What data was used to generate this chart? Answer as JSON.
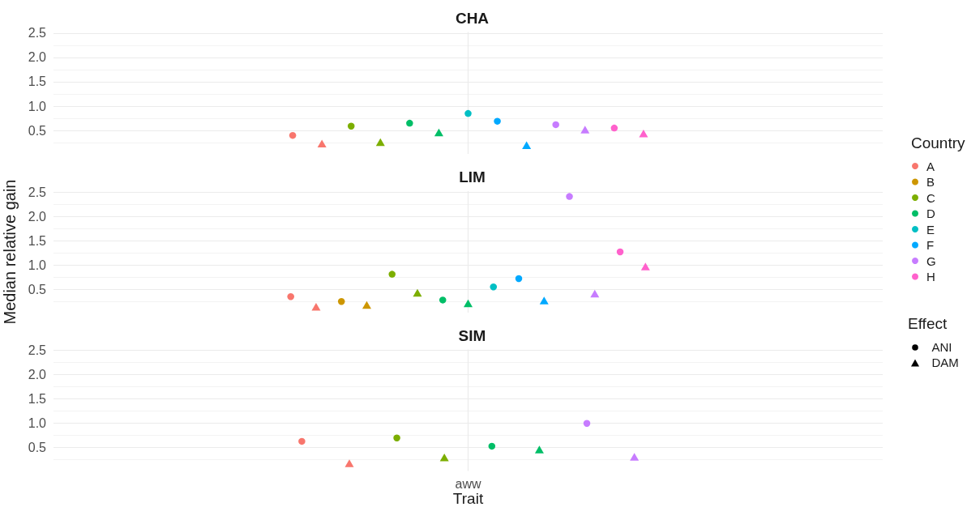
{
  "chart_data": [
    {
      "type": "scatter",
      "title": "CHA",
      "categories": [
        null
      ],
      "ylim": [
        0.02,
        2.52
      ],
      "yticks": [
        {
          "value": 0.25,
          "label": null
        },
        0.5,
        {
          "value": 0.75,
          "label": null
        },
        {
          "value": 1,
          "label": "1.0"
        },
        {
          "value": 1.25,
          "label": null
        },
        1.5,
        {
          "value": 1.75,
          "label": null
        },
        {
          "value": 2,
          "label": "2.0"
        },
        {
          "value": 2.25,
          "label": null
        },
        2.5
      ],
      "grid": true,
      "tick_labels": "y",
      "series": [
        {
          "color": "#f8766d",
          "marker": "circle",
          "values": [
            0.4
          ]
        },
        {
          "color": "#f8766d",
          "marker": "triangle",
          "values": [
            0.23
          ]
        },
        {
          "color": "#7cae00",
          "marker": "circle",
          "values": [
            0.59
          ]
        },
        {
          "color": "#7cae00",
          "marker": "triangle",
          "values": [
            0.26
          ]
        },
        {
          "color": "#00be67",
          "marker": "circle",
          "values": [
            0.65
          ]
        },
        {
          "color": "#00be67",
          "marker": "triangle",
          "values": [
            0.46
          ]
        },
        {
          "color": "#00bfc4",
          "marker": "circle",
          "values": [
            0.85
          ]
        },
        {
          "color": "#00a9ff",
          "marker": "circle",
          "values": [
            0.69
          ]
        },
        {
          "color": "#00a9ff",
          "marker": "triangle",
          "values": [
            0.2
          ]
        },
        {
          "color": "#c77cff",
          "marker": "circle",
          "values": [
            0.62
          ]
        },
        {
          "color": "#c77cff",
          "marker": "triangle",
          "values": [
            0.52
          ]
        },
        {
          "color": "#ff61cc",
          "marker": "circle",
          "values": [
            0.55
          ]
        },
        {
          "color": "#ff61cc",
          "marker": "triangle",
          "values": [
            0.44
          ]
        }
      ]
    },
    {
      "type": "scatter",
      "title": "LIM",
      "categories": [
        null
      ],
      "ylabel": "Median relative gain",
      "ylim": [
        0.02,
        2.52
      ],
      "yticks": [
        {
          "value": 0.25,
          "label": null
        },
        0.5,
        {
          "value": 0.75,
          "label": null
        },
        {
          "value": 1,
          "label": "1.0"
        },
        {
          "value": 1.25,
          "label": null
        },
        1.5,
        {
          "value": 1.75,
          "label": null
        },
        {
          "value": 2,
          "label": "2.0"
        },
        {
          "value": 2.25,
          "label": null
        },
        2.5
      ],
      "grid": true,
      "tick_labels": "y",
      "legend": "right",
      "legend_title": "Country",
      "annotations": [
        "Effect",
        "ANI",
        "DAM"
      ],
      "series": [
        {
          "name": "A",
          "color": "#f8766d",
          "marker": "circle",
          "values": [
            0.35
          ]
        },
        {
          "color": "#f8766d",
          "marker": "triangle",
          "values": [
            0.14
          ]
        },
        {
          "name": "B",
          "color": "#cd9600",
          "marker": "circle",
          "values": [
            0.25
          ]
        },
        {
          "color": "#cd9600",
          "marker": "triangle",
          "values": [
            0.18
          ]
        },
        {
          "name": "C",
          "color": "#7cae00",
          "marker": "circle",
          "values": [
            0.81
          ]
        },
        {
          "color": "#7cae00",
          "marker": "triangle",
          "values": [
            0.43
          ]
        },
        {
          "name": "D",
          "color": "#00be67",
          "marker": "circle",
          "values": [
            0.28
          ]
        },
        {
          "color": "#00be67",
          "marker": "triangle",
          "values": [
            0.21
          ]
        },
        {
          "name": "E",
          "color": "#00bfc4",
          "marker": "circle",
          "values": [
            0.55
          ]
        },
        {
          "name": "F",
          "color": "#00a9ff",
          "marker": "circle",
          "values": [
            0.72
          ]
        },
        {
          "color": "#00a9ff",
          "marker": "triangle",
          "values": [
            0.27
          ]
        },
        {
          "name": "G",
          "color": "#c77cff",
          "marker": "circle",
          "values": [
            2.41
          ]
        },
        {
          "color": "#c77cff",
          "marker": "triangle",
          "values": [
            0.41
          ]
        },
        {
          "name": "H",
          "color": "#ff61cc",
          "marker": "circle",
          "values": [
            1.27
          ]
        },
        {
          "color": "#ff61cc",
          "marker": "triangle",
          "values": [
            0.97
          ]
        }
      ]
    },
    {
      "type": "scatter",
      "title": "SIM",
      "categories": [
        "aww"
      ],
      "xlabel": "Trait",
      "ylim": [
        0.02,
        2.52
      ],
      "yticks": [
        {
          "value": 0.25,
          "label": null
        },
        0.5,
        {
          "value": 0.75,
          "label": null
        },
        {
          "value": 1,
          "label": "1.0"
        },
        {
          "value": 1.25,
          "label": null
        },
        1.5,
        {
          "value": 1.75,
          "label": null
        },
        {
          "value": 2,
          "label": "2.0"
        },
        {
          "value": 2.25,
          "label": null
        },
        2.5
      ],
      "grid": true,
      "series": [
        {
          "color": "#f8766d",
          "marker": "circle",
          "values": [
            0.63
          ]
        },
        {
          "color": "#f8766d",
          "marker": "triangle",
          "values": [
            0.18
          ]
        },
        {
          "color": "#7cae00",
          "marker": "circle",
          "values": [
            0.7
          ]
        },
        {
          "color": "#7cae00",
          "marker": "triangle",
          "values": [
            0.3
          ]
        },
        {
          "color": "#00be67",
          "marker": "circle",
          "values": [
            0.53
          ]
        },
        {
          "color": "#00be67",
          "marker": "triangle",
          "values": [
            0.46
          ]
        },
        {
          "color": "#c77cff",
          "marker": "circle",
          "values": [
            1.0
          ]
        },
        {
          "color": "#c77cff",
          "marker": "triangle",
          "values": [
            0.31
          ]
        }
      ]
    }
  ]
}
